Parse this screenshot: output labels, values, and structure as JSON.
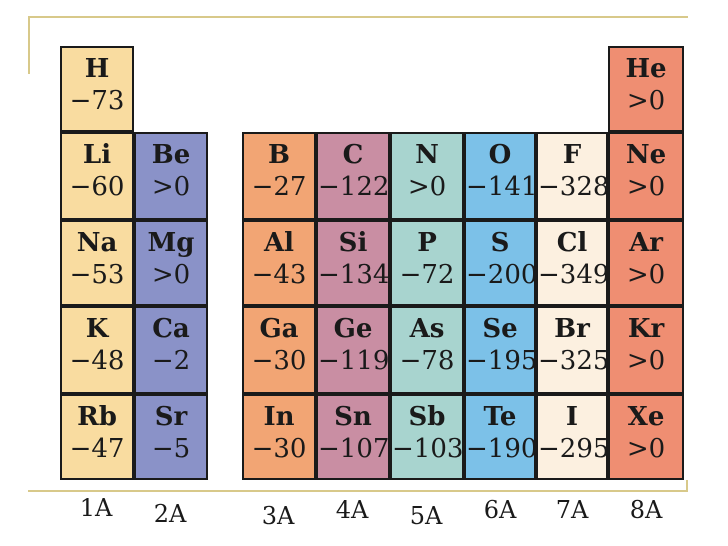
{
  "elements": {
    "H": {
      "symbol": "H",
      "value": "−73"
    },
    "He": {
      "symbol": "He",
      "value": ">0"
    },
    "Li": {
      "symbol": "Li",
      "value": "−60"
    },
    "Be": {
      "symbol": "Be",
      "value": ">0"
    },
    "B": {
      "symbol": "B",
      "value": "−27"
    },
    "C": {
      "symbol": "C",
      "value": "−122"
    },
    "N": {
      "symbol": "N",
      "value": ">0"
    },
    "O": {
      "symbol": "O",
      "value": "−141"
    },
    "F": {
      "symbol": "F",
      "value": "−328"
    },
    "Ne": {
      "symbol": "Ne",
      "value": ">0"
    },
    "Na": {
      "symbol": "Na",
      "value": "−53"
    },
    "Mg": {
      "symbol": "Mg",
      "value": ">0"
    },
    "Al": {
      "symbol": "Al",
      "value": "−43"
    },
    "Si": {
      "symbol": "Si",
      "value": "−134"
    },
    "P": {
      "symbol": "P",
      "value": "−72"
    },
    "S": {
      "symbol": "S",
      "value": "−200"
    },
    "Cl": {
      "symbol": "Cl",
      "value": "−349"
    },
    "Ar": {
      "symbol": "Ar",
      "value": ">0"
    },
    "K": {
      "symbol": "K",
      "value": "−48"
    },
    "Ca": {
      "symbol": "Ca",
      "value": "−2"
    },
    "Ga": {
      "symbol": "Ga",
      "value": "−30"
    },
    "Ge": {
      "symbol": "Ge",
      "value": "−119"
    },
    "As": {
      "symbol": "As",
      "value": "−78"
    },
    "Se": {
      "symbol": "Se",
      "value": "−195"
    },
    "Br": {
      "symbol": "Br",
      "value": "−325"
    },
    "Kr": {
      "symbol": "Kr",
      "value": ">0"
    },
    "Rb": {
      "symbol": "Rb",
      "value": "−47"
    },
    "Sr": {
      "symbol": "Sr",
      "value": "−5"
    },
    "In": {
      "symbol": "In",
      "value": "−30"
    },
    "Sn": {
      "symbol": "Sn",
      "value": "−107"
    },
    "Sb": {
      "symbol": "Sb",
      "value": "−103"
    },
    "Te": {
      "symbol": "Te",
      "value": "−190"
    },
    "I": {
      "symbol": "I",
      "value": "−295"
    },
    "Xe": {
      "symbol": "Xe",
      "value": ">0"
    }
  },
  "groups": {
    "g1A": "1A",
    "g2A": "2A",
    "g3A": "3A",
    "g4A": "4A",
    "g5A": "5A",
    "g6A": "6A",
    "g7A": "7A",
    "g8A": "8A"
  },
  "colors": {
    "group_1A": "#f9dca0",
    "group_2A": "#8a92c8",
    "group_3A": "#f2a574",
    "group_4A": "#c98ea3",
    "group_5A": "#a8d4cf",
    "group_6A": "#7cc1e8",
    "group_7A": "#fcf0e0",
    "group_8A": "#ef8e72",
    "frame_line": "#d8c98a"
  }
}
